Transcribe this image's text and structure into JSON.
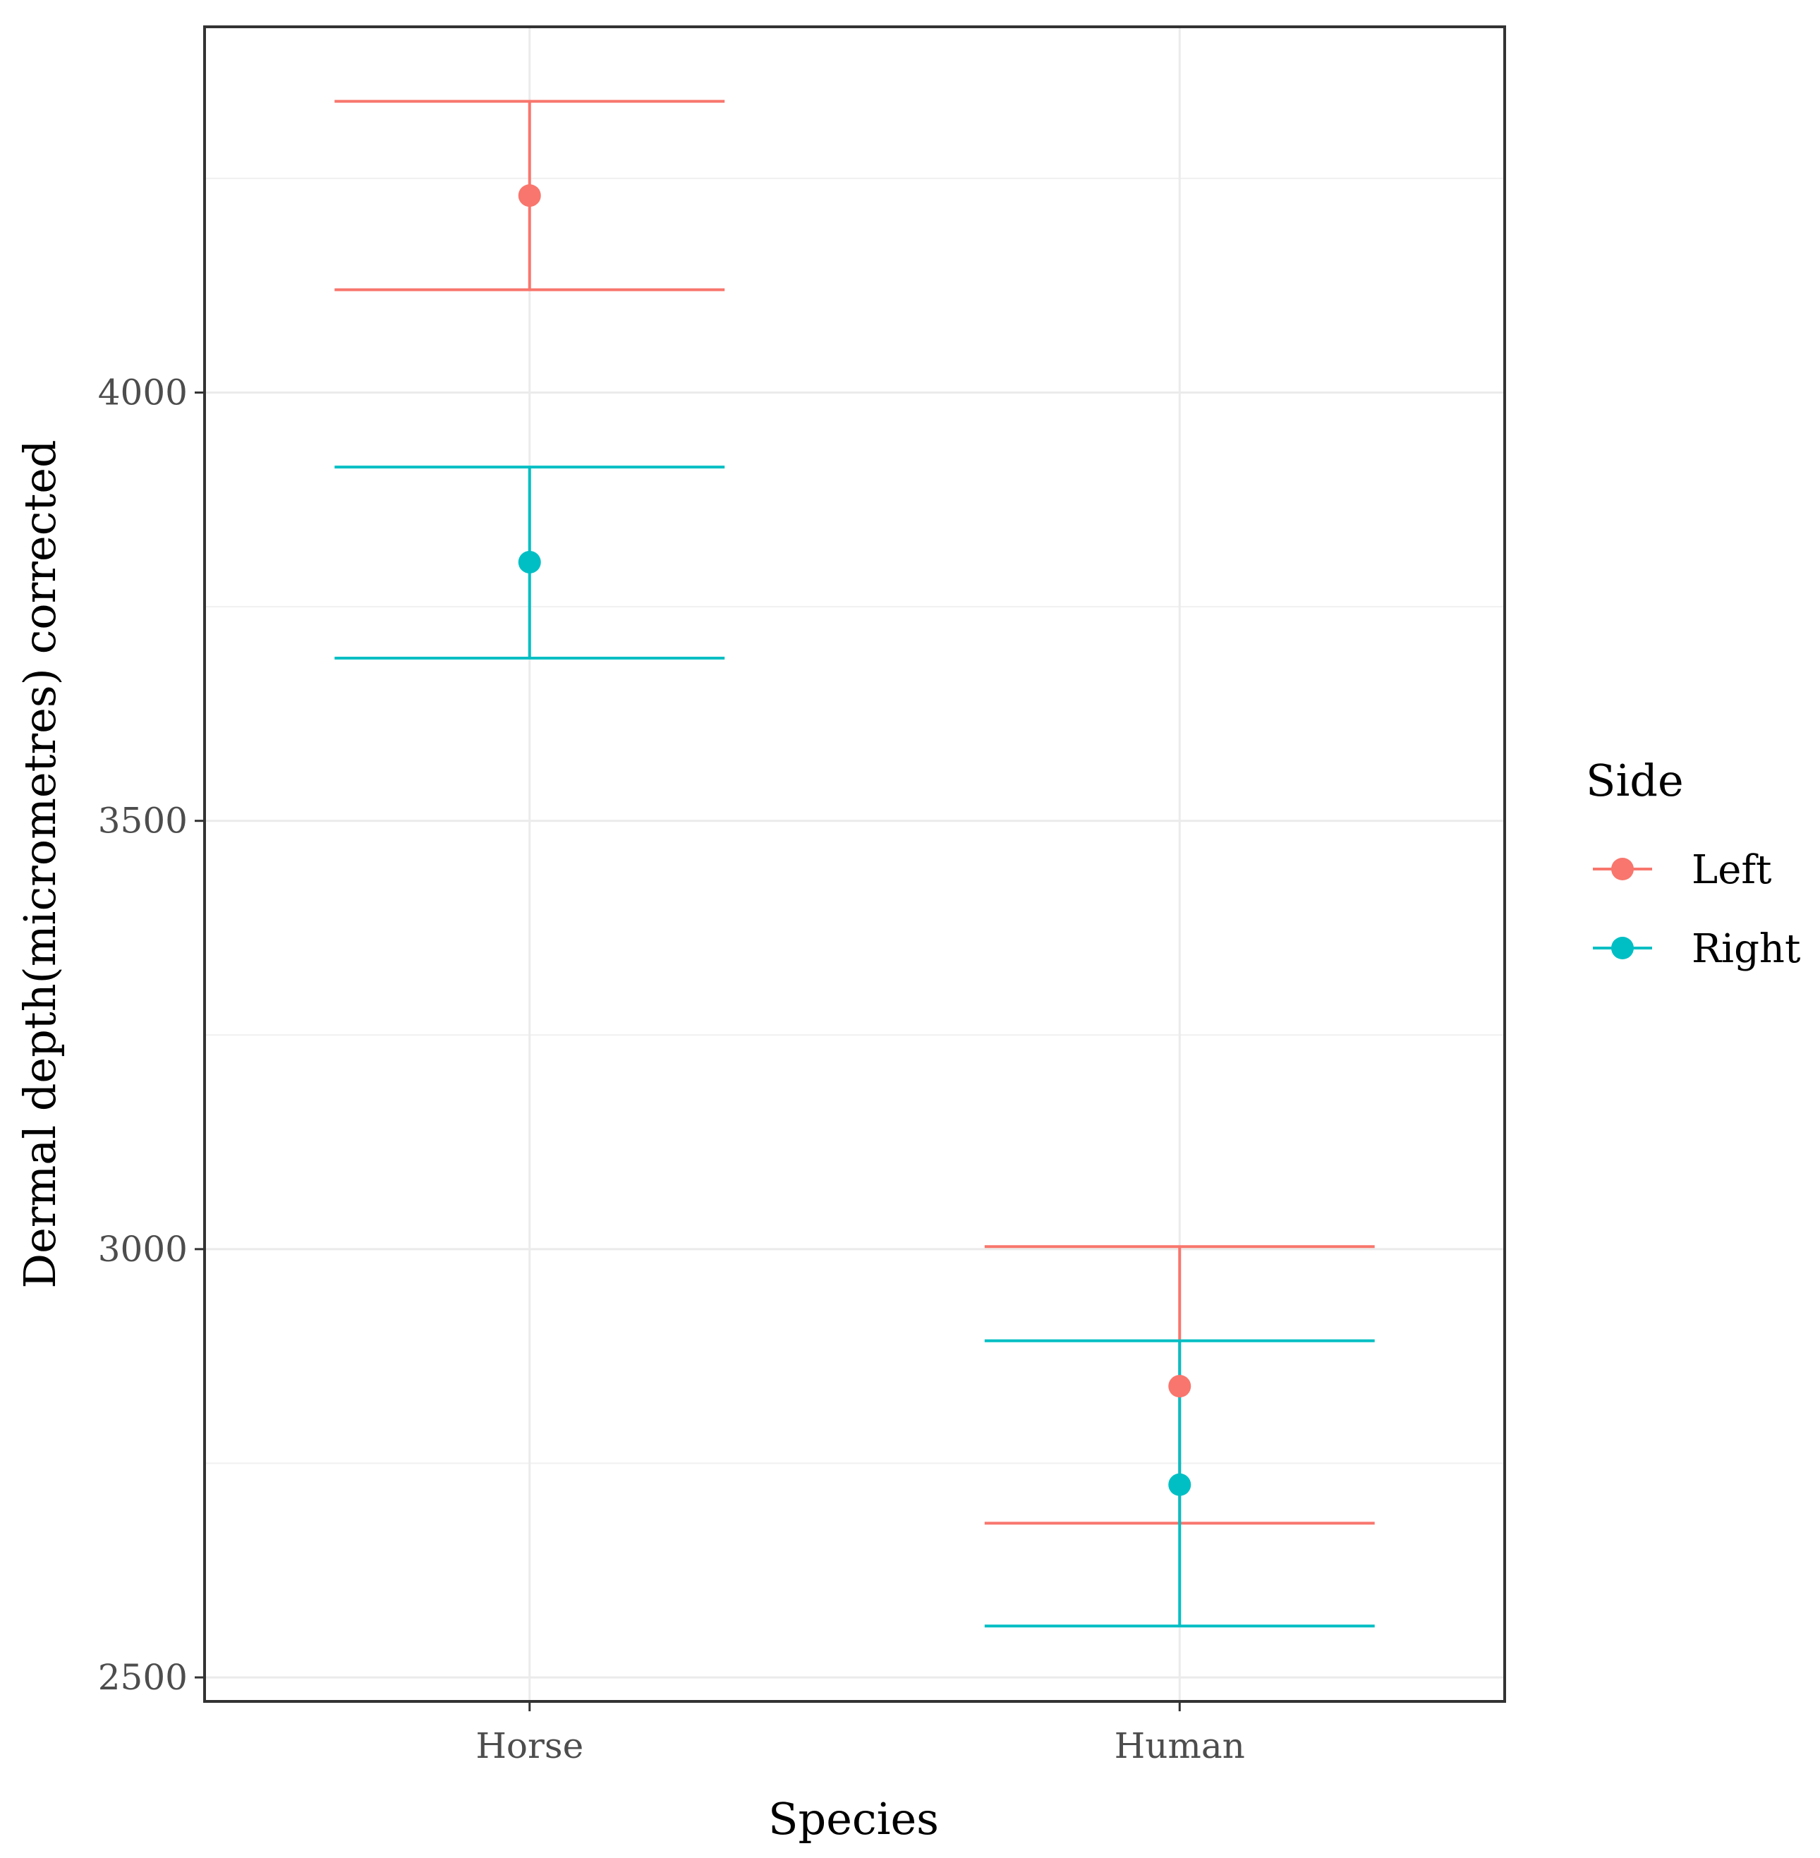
{
  "chart_data": {
    "type": "errorbar",
    "categories": [
      "Horse",
      "Human"
    ],
    "series": [
      {
        "name": "Left",
        "color": "#F8766D",
        "values": [
          4230,
          2840
        ],
        "lower": [
          4120,
          2680
        ],
        "upper": [
          4340,
          3003
        ]
      },
      {
        "name": "Right",
        "color": "#00BFC4",
        "values": [
          3802,
          2725
        ],
        "lower": [
          3690,
          2560
        ],
        "upper": [
          3913,
          2893
        ]
      }
    ],
    "xlabel": "Species",
    "ylabel": "Dermal depth(micrometres) corrected",
    "yticks": [
      2500,
      3000,
      3500,
      4000
    ],
    "ytick_labels": [
      "2500",
      "3000",
      "3500",
      "4000"
    ],
    "ylim": [
      2472,
      4427
    ],
    "legend_title": "Side",
    "legend_position": "right",
    "grid": true
  }
}
